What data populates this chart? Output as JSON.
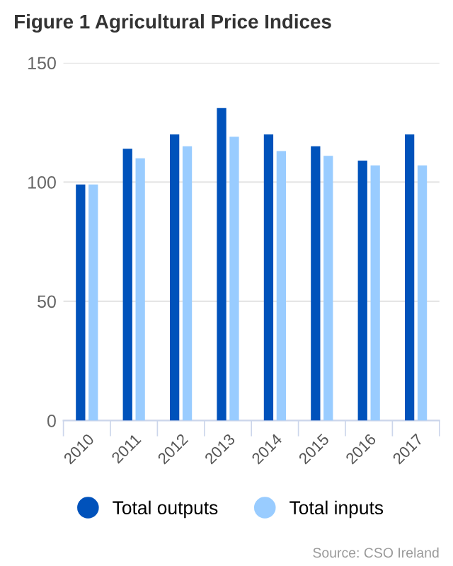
{
  "chart_data": {
    "type": "bar",
    "title": "Figure 1 Agricultural Price Indices",
    "categories": [
      "2010",
      "2011",
      "2012",
      "2013",
      "2014",
      "2015",
      "2016",
      "2017"
    ],
    "series": [
      {
        "name": "Total outputs",
        "color": "#0052bb",
        "values": [
          99,
          114,
          120,
          131,
          120,
          115,
          109,
          120
        ]
      },
      {
        "name": "Total inputs",
        "color": "#99ccff",
        "values": [
          99,
          110,
          115,
          119,
          113,
          111,
          107,
          107
        ]
      }
    ],
    "ylim": [
      0,
      150
    ],
    "yticks": [
      0,
      50,
      100,
      150
    ],
    "grid": "y",
    "legend": "bottom",
    "annotations": [
      "Source: CSO Ireland"
    ]
  }
}
